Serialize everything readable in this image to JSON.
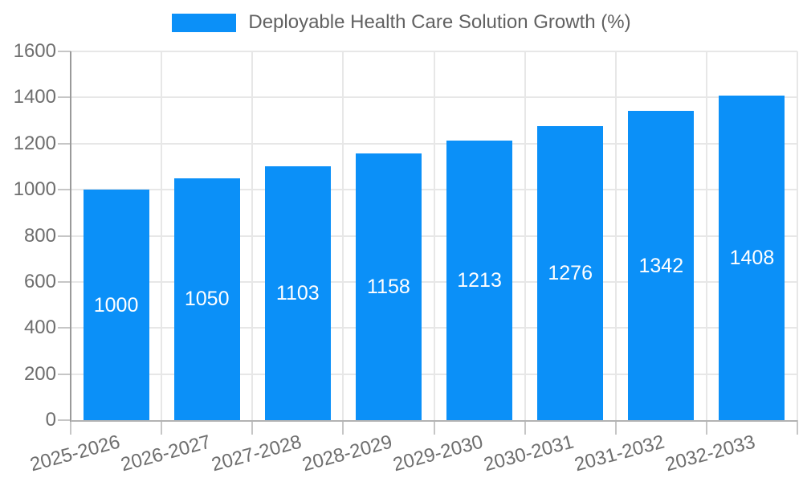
{
  "legend": {
    "label": "Deployable Health Care Solution Growth (%)"
  },
  "chart_data": {
    "type": "bar",
    "title": "Deployable Health Care Solution Growth (%)",
    "categories": [
      "2025-2026",
      "2026-2027",
      "2027-2028",
      "2028-2029",
      "2029-2030",
      "2030-2031",
      "2031-2032",
      "2032-2033"
    ],
    "values": [
      1000,
      1050,
      1103,
      1158,
      1213,
      1276,
      1342,
      1408
    ],
    "bar_labels": [
      "1000",
      "1050",
      "1103",
      "1158",
      "1213",
      "1276",
      "1342",
      "1408"
    ],
    "xlabel": "",
    "ylabel": "",
    "ylim": [
      0,
      1600
    ],
    "yticks": [
      0,
      200,
      400,
      600,
      800,
      1000,
      1200,
      1400,
      1600
    ],
    "grid": true,
    "legend_position": "top",
    "bar_color": "#0B90F8",
    "bar_label_color": "#FFFFFF"
  },
  "colors": {
    "accent_blue": "#0B90F8",
    "axis_text": "#6E6E6E",
    "legend_text": "#616161",
    "grid_line": "#E7E7E7",
    "y_axis_line": "#9A9A9A",
    "x_axis_line": "#B3B3B3",
    "tick_mark": "#C6C6C6"
  }
}
